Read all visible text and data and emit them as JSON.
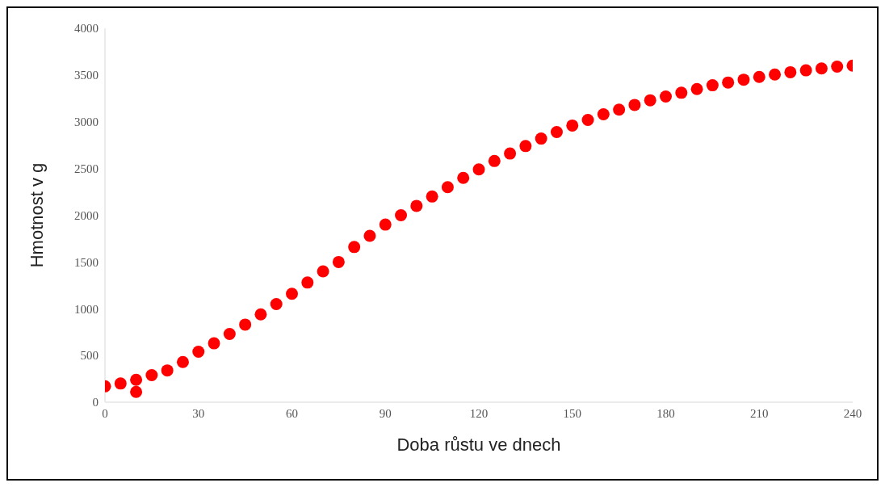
{
  "chart_data": {
    "type": "scatter",
    "xlabel": "Doba růstu ve dnech",
    "ylabel": "Hmotnost v g",
    "xlim": [
      0,
      240
    ],
    "ylim": [
      0,
      4000
    ],
    "xticks": [
      0,
      30,
      60,
      90,
      120,
      150,
      180,
      210,
      240
    ],
    "yticks": [
      0,
      500,
      1000,
      1500,
      2000,
      2500,
      3000,
      3500,
      4000
    ],
    "grid": false,
    "legend": false,
    "marker": "circle",
    "series": [
      {
        "color": "#ff0000",
        "x": [
          0,
          5,
          10,
          10,
          15,
          20,
          25,
          30,
          35,
          40,
          45,
          50,
          55,
          60,
          65,
          70,
          75,
          80,
          85,
          90,
          95,
          100,
          105,
          110,
          115,
          120,
          125,
          130,
          135,
          140,
          145,
          150,
          155,
          160,
          165,
          170,
          175,
          180,
          185,
          190,
          195,
          200,
          205,
          210,
          215,
          220,
          225,
          230,
          235,
          240
        ],
        "values": [
          170,
          200,
          240,
          110,
          290,
          340,
          430,
          540,
          630,
          730,
          830,
          940,
          1050,
          1160,
          1280,
          1400,
          1500,
          1660,
          1780,
          1900,
          2000,
          2100,
          2200,
          2300,
          2400,
          2490,
          2580,
          2660,
          2740,
          2820,
          2890,
          2960,
          3020,
          3080,
          3130,
          3180,
          3230,
          3270,
          3310,
          3350,
          3390,
          3420,
          3450,
          3480,
          3505,
          3530,
          3550,
          3570,
          3590,
          3600
        ]
      }
    ]
  }
}
